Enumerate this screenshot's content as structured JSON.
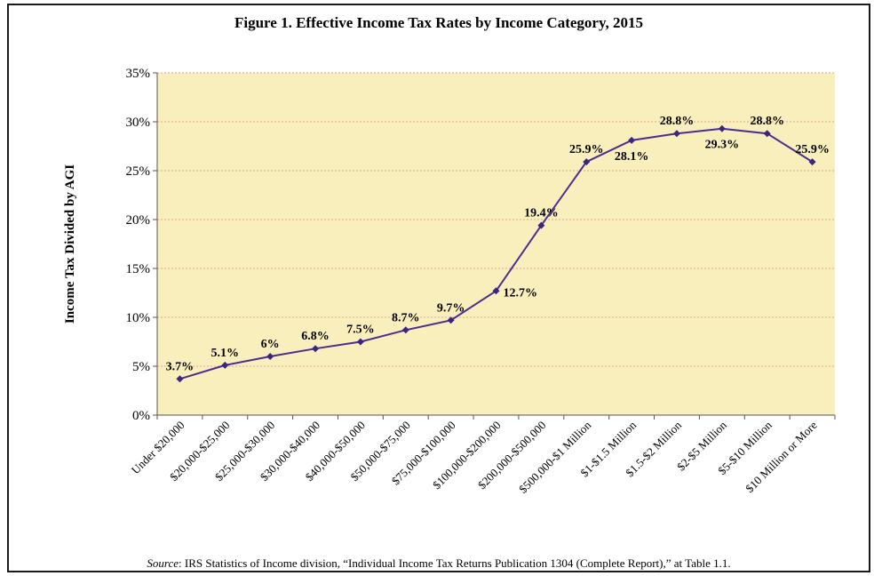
{
  "title": "Figure 1. Effective Income Tax Rates by Income Category, 2015",
  "source": {
    "label": "Source",
    "text": ": IRS Statistics of Income division, “Individual Income Tax Returns Publication 1304 (Complete Report),” at Table 1.1."
  },
  "colors": {
    "plot_background": "#f8efbd",
    "gridline": "#e0a590",
    "series": "#4a2d8f",
    "marker": "#3a2580"
  },
  "chart_data": {
    "type": "line",
    "ylabel": "Income Tax Divided by AGI",
    "xlabel": "",
    "ylim": [
      0,
      35
    ],
    "yticks": [
      0,
      5,
      10,
      15,
      20,
      25,
      30,
      35
    ],
    "ytick_labels": [
      "0%",
      "5%",
      "10%",
      "15%",
      "20%",
      "25%",
      "30%",
      "35%"
    ],
    "grid": true,
    "categories": [
      "Under $20,000",
      "$20,000-$25,000",
      "$25,000-$30,000",
      "$30,000-$40,000",
      "$40,000-$50,000",
      "$50,000-$75,000",
      "$75,000-$100,000",
      "$100,000-$200,000",
      "$200,000-$500,000",
      "$500,000-$1 Million",
      "$1-$1.5 Million",
      "$1.5-$2 Million",
      "$2-$5 Million",
      "$5-$10 Million",
      "$10 Million or More"
    ],
    "values": [
      3.7,
      5.1,
      6.0,
      6.8,
      7.5,
      8.7,
      9.7,
      12.7,
      19.4,
      25.9,
      28.1,
      28.8,
      29.3,
      28.8,
      25.9
    ],
    "data_labels": [
      "3.7%",
      "5.1%",
      "6%",
      "6.8%",
      "7.5%",
      "8.7%",
      "9.7%",
      "12.7%",
      "19.4%",
      "25.9%",
      "28.1%",
      "28.8%",
      "29.3%",
      "28.8%",
      "25.9%"
    ],
    "label_positions": [
      "above",
      "above",
      "above",
      "above",
      "above",
      "above",
      "above",
      "right",
      "above",
      "above",
      "below",
      "above",
      "below",
      "above",
      "above"
    ]
  }
}
